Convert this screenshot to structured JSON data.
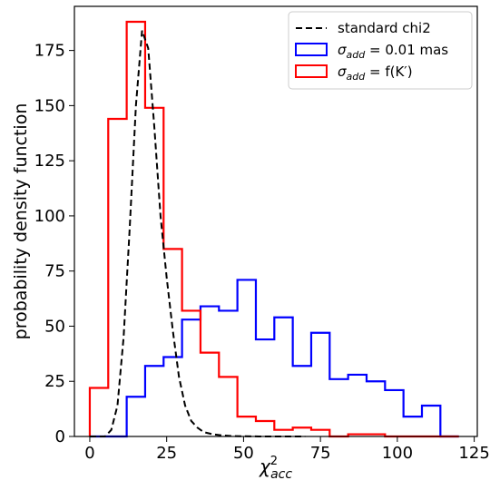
{
  "chart_data": {
    "type": "histogram",
    "xlabel": "χ²acc",
    "ylabel": "probability density function",
    "xlim": [
      -5,
      126
    ],
    "ylim": [
      0,
      195
    ],
    "xticks": [
      0,
      25,
      50,
      75,
      100,
      125
    ],
    "yticks": [
      0,
      25,
      50,
      75,
      100,
      125,
      150,
      175
    ],
    "grid": false,
    "legend_position": "top-right",
    "series": [
      {
        "name": "σ_add = 0.01 mas",
        "label_parts": {
          "sym": "σ",
          "sub": "add",
          "rest": " = 0.01 mas"
        },
        "kind": "step",
        "color": "#0000ff",
        "bin_edges": [
          0,
          6,
          12,
          18,
          24,
          30,
          36,
          42,
          48,
          54,
          60,
          66,
          72,
          78,
          84,
          90,
          96,
          102,
          108,
          114,
          120
        ],
        "values": [
          0,
          0,
          18,
          32,
          36,
          53,
          59,
          57,
          71,
          44,
          54,
          32,
          47,
          26,
          28,
          25,
          21,
          9,
          14,
          0
        ]
      },
      {
        "name": "σ_add = f(K′)",
        "label_parts": {
          "sym": "σ",
          "sub": "add",
          "rest": " = f(K′)"
        },
        "kind": "step",
        "color": "#ff0000",
        "bin_edges": [
          0,
          6,
          12,
          18,
          24,
          30,
          36,
          42,
          48,
          54,
          60,
          66,
          72,
          78,
          84,
          90,
          96,
          102,
          108,
          114,
          120
        ],
        "values": [
          22,
          144,
          188,
          149,
          85,
          57,
          38,
          27,
          9,
          7,
          3,
          4,
          3,
          0,
          1,
          1,
          0,
          0,
          0,
          0
        ]
      },
      {
        "name": "standard chi2",
        "kind": "line",
        "color": "#000000",
        "dash": true,
        "x": [
          0,
          3,
          5,
          7,
          9,
          11,
          13,
          15,
          17,
          19,
          21,
          23,
          25,
          27,
          29,
          31,
          33,
          35,
          37,
          40,
          43,
          46,
          50,
          55,
          60,
          65,
          70
        ],
        "y": [
          0,
          0,
          0,
          3,
          14,
          45,
          95,
          150,
          184,
          176,
          140,
          100,
          72,
          48,
          27,
          14,
          7,
          4,
          2,
          1,
          0.5,
          0.2,
          0.1,
          0,
          0,
          0,
          0
        ]
      }
    ]
  }
}
